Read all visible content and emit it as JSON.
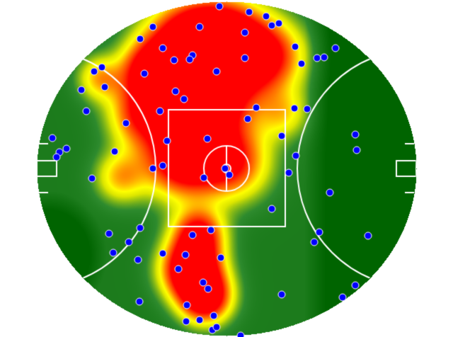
{
  "heatmap": {
    "type": "field-heatmap",
    "colors": {
      "hot": "#ff0000",
      "warm": "#ff7f00",
      "mid": "#ffff00",
      "cool": "#2e8b2e",
      "cold": "#006400",
      "point_fill": "#0000ff",
      "point_stroke": "#ffffff",
      "line": "#ffffff"
    },
    "points": [
      [
        310,
        9
      ],
      [
        352,
        17
      ],
      [
        376,
        23
      ],
      [
        384,
        36
      ],
      [
        394,
        33
      ],
      [
        216,
        38
      ],
      [
        282,
        38
      ],
      [
        346,
        46
      ],
      [
        198,
        55
      ],
      [
        230,
        68
      ],
      [
        272,
        78
      ],
      [
        246,
        85
      ],
      [
        268,
        84
      ],
      [
        346,
        82
      ],
      [
        417,
        66
      ],
      [
        448,
        82
      ],
      [
        458,
        81
      ],
      [
        474,
        68
      ],
      [
        426,
        90
      ],
      [
        144,
        95
      ],
      [
        133,
        101
      ],
      [
        306,
        101
      ],
      [
        204,
        104
      ],
      [
        148,
        123
      ],
      [
        115,
        127
      ],
      [
        248,
        129
      ],
      [
        260,
        140
      ],
      [
        362,
        152
      ],
      [
        416,
        153
      ],
      [
        434,
        154
      ],
      [
        122,
        157
      ],
      [
        226,
        157
      ],
      [
        350,
        168
      ],
      [
        178,
        174
      ],
      [
        398,
        192
      ],
      [
        502,
        190
      ],
      [
        74,
        195
      ],
      [
        293,
        196
      ],
      [
        236,
        199
      ],
      [
        94,
        210
      ],
      [
        84,
        215
      ],
      [
        80,
        222
      ],
      [
        162,
        214
      ],
      [
        504,
        212
      ],
      [
        418,
        220
      ],
      [
        230,
        234
      ],
      [
        216,
        238
      ],
      [
        318,
        238
      ],
      [
        324,
        247
      ],
      [
        288,
        251
      ],
      [
        408,
        244
      ],
      [
        130,
        252
      ],
      [
        466,
        272
      ],
      [
        384,
        295
      ],
      [
        198,
        322
      ],
      [
        298,
        325
      ],
      [
        154,
        330
      ],
      [
        272,
        332
      ],
      [
        451,
        328
      ],
      [
        520,
        333
      ],
      [
        444,
        342
      ],
      [
        182,
        342
      ],
      [
        160,
        357
      ],
      [
        230,
        358
      ],
      [
        262,
        360
      ],
      [
        312,
        364
      ],
      [
        195,
        367
      ],
      [
        252,
        380
      ],
      [
        287,
        399
      ],
      [
        294,
        408
      ],
      [
        398,
        416
      ],
      [
        502,
        403
      ],
      [
        484,
        420
      ],
      [
        197,
        426
      ],
      [
        264,
        431
      ],
      [
        302,
        446
      ],
      [
        263,
        454
      ],
      [
        282,
        452
      ],
      [
        300,
        466
      ],
      [
        306,
        462
      ],
      [
        340,
        474
      ]
    ],
    "hotspots": [
      [
        270,
        70,
        60,
        2.6
      ],
      [
        320,
        60,
        55,
        2.0
      ],
      [
        380,
        80,
        50,
        1.4
      ],
      [
        210,
        100,
        40,
        1.5
      ],
      [
        200,
        160,
        45,
        1.4
      ],
      [
        300,
        140,
        60,
        1.8
      ],
      [
        260,
        220,
        55,
        2.2
      ],
      [
        330,
        230,
        50,
        1.3
      ],
      [
        280,
        330,
        35,
        1.6
      ],
      [
        270,
        380,
        40,
        2.4
      ],
      [
        290,
        420,
        35,
        2.0
      ],
      [
        140,
        110,
        30,
        0.9
      ],
      [
        170,
        250,
        35,
        0.9
      ],
      [
        400,
        160,
        35,
        0.7
      ]
    ]
  }
}
